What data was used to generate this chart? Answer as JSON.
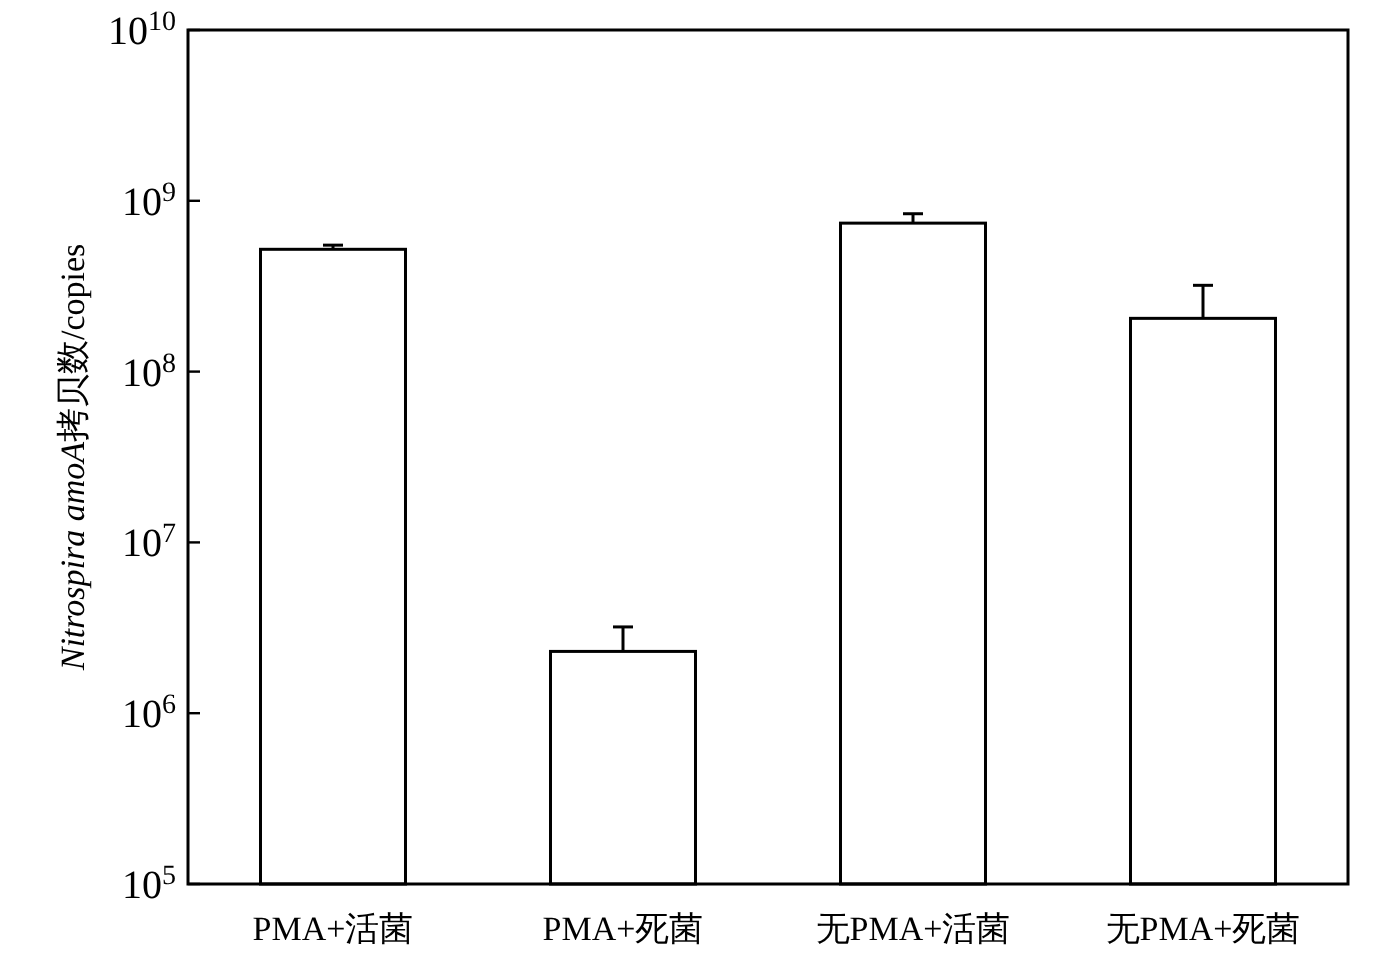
{
  "chart_data": {
    "type": "bar",
    "ylabel": "Nitrospira amoA拷贝数/copies",
    "categories": [
      "PMA+活菌",
      "PMA+死菌",
      "无PMA+活菌",
      "无PMA+死菌"
    ],
    "values": [
      520000000,
      2300000,
      740000000,
      205000000
    ],
    "errors": [
      [
        520000000,
        550000000
      ],
      [
        2300000,
        3200000
      ],
      [
        740000000,
        840000000
      ],
      [
        205000000,
        320000000
      ]
    ],
    "color": "#ffffff",
    "log": true,
    "ylim": [
      100000,
      10000000000
    ],
    "yticks": [
      {
        "value": 100000,
        "label": "10$^{5}$"
      },
      {
        "value": 1000000,
        "label": "10$^{6}$"
      },
      {
        "value": 10000000,
        "label": "10$^{7}$"
      },
      {
        "value": 100000000,
        "label": "10$^{8}$"
      },
      {
        "value": 1000000000,
        "label": "10$^{9}$"
      },
      {
        "value": 10000000000,
        "label": "10$^{10}$"
      }
    ],
    "grid": false
  }
}
